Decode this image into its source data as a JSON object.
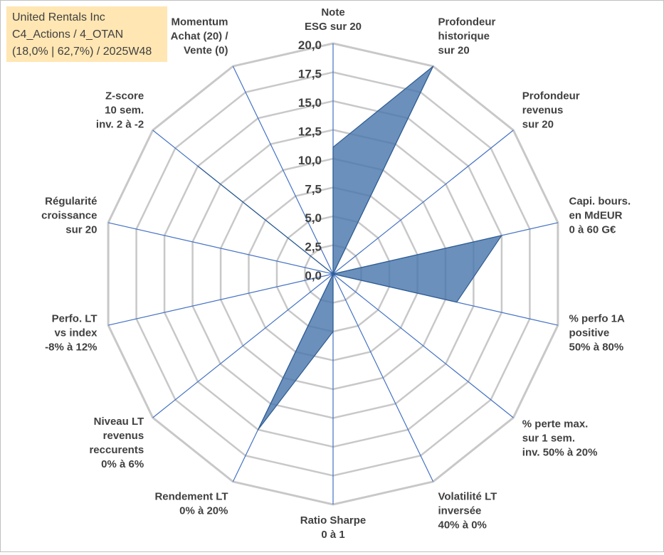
{
  "title_box": {
    "line1": "United Rentals Inc",
    "line2": "C4_Actions / 4_OTAN",
    "line3": "(18,0% | 62,7%) / 2025W48"
  },
  "chart_data": {
    "type": "radar",
    "title": "United Rentals Inc",
    "scale": {
      "min": 0,
      "max": 20,
      "step": 2.5
    },
    "tick_labels": [
      "0,0",
      "2,5",
      "5,0",
      "7,5",
      "10,0",
      "12,5",
      "15,0",
      "17,5",
      "20,0"
    ],
    "grid": true,
    "axes": [
      [
        "Note",
        "ESG sur 20"
      ],
      [
        "Profondeur",
        "historique",
        "sur 20"
      ],
      [
        "Profondeur",
        "revenus",
        "sur 20"
      ],
      [
        "Capi. bours.",
        "en MdEUR",
        "0 à 60 G€"
      ],
      [
        "% perfo 1A",
        "positive",
        "50% à 80%"
      ],
      [
        "% perte max.",
        "sur 1 sem.",
        "inv. 50% à 20%"
      ],
      [
        "Volatilité LT",
        "inversée",
        "40% à 0%"
      ],
      [
        "Ratio Sharpe",
        "0 à 1"
      ],
      [
        "Rendement LT",
        "0% à 20%"
      ],
      [
        "Niveau LT",
        "revenus",
        "reccurents",
        "0% à 6%"
      ],
      [
        "Perfo. LT",
        "vs index",
        "-8% à 12%"
      ],
      [
        "Régularité",
        "croissance",
        "sur 20"
      ],
      [
        "Z-score",
        "10 sem.",
        "inv. 2 à -2"
      ],
      [
        "Momentum",
        "Achat (20) /",
        "Vente (0)"
      ]
    ],
    "series": [
      {
        "values": [
          11,
          20,
          0,
          15,
          11,
          0,
          0,
          5,
          15,
          0,
          0,
          0,
          15,
          0
        ]
      }
    ],
    "colors": {
      "fill": "#4a77ad",
      "stroke": "#2e5c91",
      "ring": "#c8c8c8",
      "spoke": "#4472c4"
    }
  }
}
